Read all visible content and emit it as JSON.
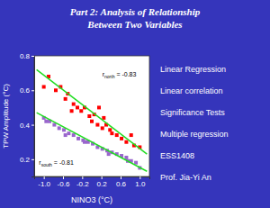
{
  "chart_data": {
    "type": "scatter",
    "title": "Part 2: Analysis of Relationship\nBetween Two Variables",
    "x_label": "NINO3 (°C)",
    "y_label": "TPW Amplitude (°C)",
    "xlim": [
      -1.2,
      1.2
    ],
    "ylim": [
      0.1,
      0.8
    ],
    "xticks": [
      {
        "value": -1.0,
        "label": "-1.0"
      },
      -0.6,
      -0.2,
      0.2,
      0.6,
      {
        "value": 1.0,
        "label": "1.0"
      }
    ],
    "yticks": [
      0.2,
      0.4,
      0.6,
      0.8
    ],
    "series": [
      {
        "type": "scatter",
        "color": "red",
        "marker": "square",
        "x": [
          -1.0,
          -0.9,
          -0.75,
          -0.65,
          -0.55,
          -0.5,
          -0.38,
          -0.3,
          -0.22,
          -0.15,
          -0.05,
          0.0,
          0.05,
          0.12,
          0.22,
          0.3,
          0.38,
          0.42,
          0.52,
          0.62,
          0.72,
          0.82,
          0.88,
          1.0,
          0.15,
          -0.42,
          0.25
        ],
        "values": [
          0.62,
          0.68,
          0.6,
          0.62,
          0.55,
          0.58,
          0.52,
          0.5,
          0.48,
          0.5,
          0.45,
          0.42,
          0.46,
          0.4,
          0.38,
          0.4,
          0.37,
          0.35,
          0.34,
          0.32,
          0.3,
          0.34,
          0.28,
          0.27,
          0.5,
          0.48,
          0.44
        ]
      },
      {
        "type": "scatter",
        "color": "#9966cc",
        "marker": "square",
        "x": [
          -1.0,
          -0.88,
          -0.78,
          -0.68,
          -0.58,
          -0.48,
          -0.38,
          -0.28,
          -0.18,
          -0.08,
          0.02,
          0.12,
          0.22,
          0.32,
          0.42,
          0.52,
          0.62,
          0.72,
          0.82,
          0.92,
          1.0,
          -0.95,
          -0.55,
          -0.15,
          0.35,
          0.75
        ],
        "values": [
          0.44,
          0.42,
          0.4,
          0.38,
          0.37,
          0.35,
          0.34,
          0.32,
          0.31,
          0.3,
          0.29,
          0.27,
          0.26,
          0.25,
          0.24,
          0.23,
          0.22,
          0.21,
          0.19,
          0.18,
          0.15,
          0.42,
          0.34,
          0.3,
          0.23,
          0.19
        ]
      },
      {
        "type": "line",
        "color": "#22dd22",
        "x": [
          -1.15,
          1.15
        ],
        "values": [
          0.72,
          0.23
        ]
      },
      {
        "type": "line",
        "color": "#22dd22",
        "x": [
          -1.15,
          1.15
        ],
        "values": [
          0.47,
          0.13
        ]
      }
    ],
    "annotations": [
      {
        "text": "r",
        "subscript": "north",
        "suffix": " = -0.83",
        "x": 0.22,
        "y": 0.68
      },
      {
        "text": "r",
        "subscript": "south",
        "suffix": " = -0.81",
        "x": -1.1,
        "y": 0.17
      },
      {
        "text": "Linear Regression"
      },
      {
        "text": "Linear correlation"
      },
      {
        "text": "Significance Tests"
      },
      {
        "text": "Multiple regression"
      },
      {
        "text": "ESS1408"
      },
      {
        "text": "Prof. Jia-Yi An"
      }
    ]
  }
}
